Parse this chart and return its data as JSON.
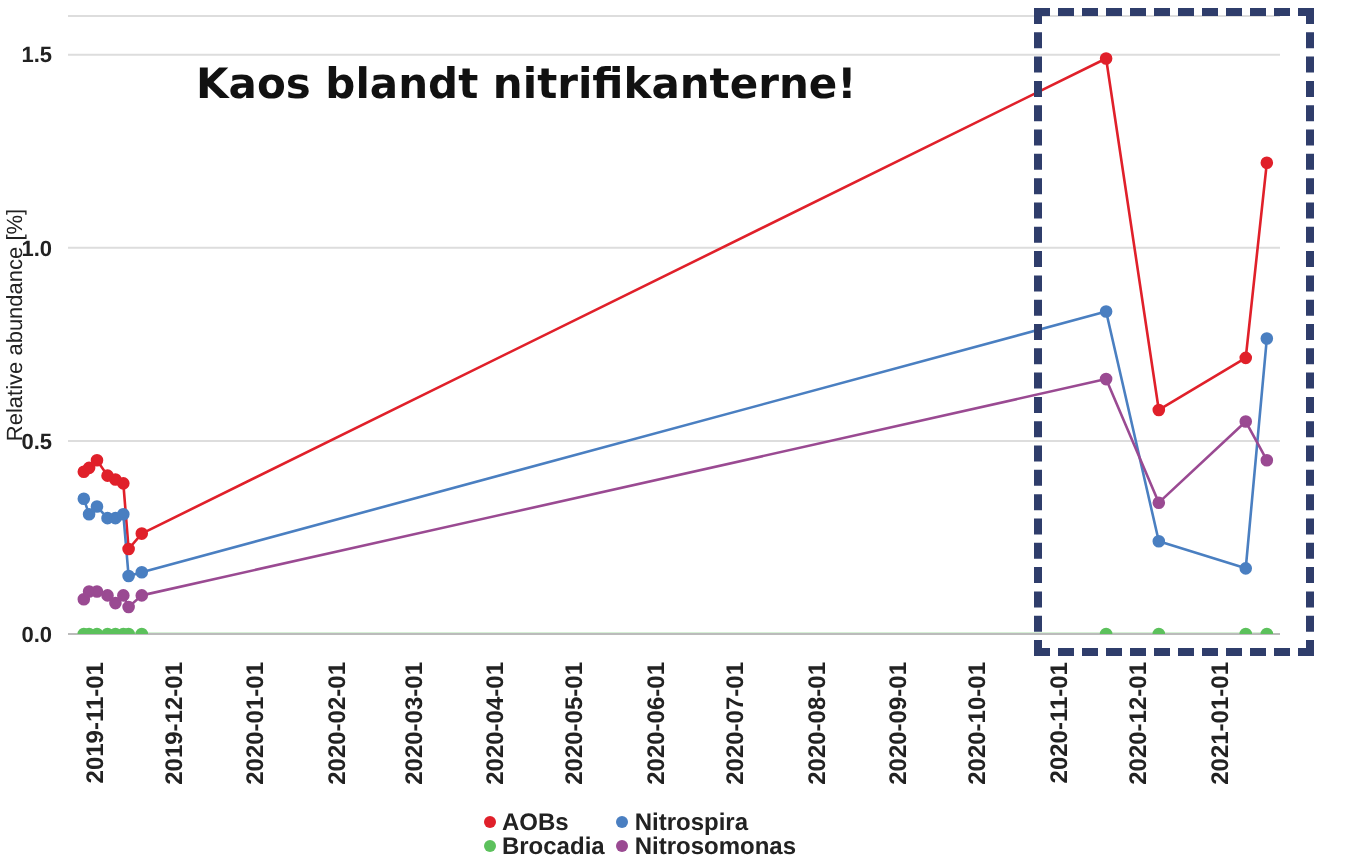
{
  "chart_data": {
    "type": "line",
    "title": "Kaos blandt nitrifikanterne!",
    "ylabel": "Relative abundance [%]",
    "x": [
      "2019-10-28",
      "2019-10-30",
      "2019-11-02",
      "2019-11-06",
      "2019-11-09",
      "2019-11-12",
      "2019-11-14",
      "2019-11-19",
      "2020-11-19",
      "2020-12-09",
      "2021-01-11",
      "2021-01-19"
    ],
    "series": [
      {
        "name": "AOBs",
        "color": "#e0202a",
        "values": [
          0.42,
          0.43,
          0.45,
          0.41,
          0.4,
          0.39,
          0.22,
          0.26,
          1.49,
          0.58,
          0.715,
          1.22
        ]
      },
      {
        "name": "Nitrospira",
        "color": "#4a7fc1",
        "values": [
          0.35,
          0.31,
          0.33,
          0.3,
          0.3,
          0.31,
          0.15,
          0.16,
          0.835,
          0.24,
          0.17,
          0.765
        ]
      },
      {
        "name": "Brocadia",
        "color": "#5cc15c",
        "values": [
          0,
          0,
          0,
          0,
          0,
          0,
          0,
          0,
          0,
          0,
          0,
          0
        ]
      },
      {
        "name": "Nitrosomonas",
        "color": "#9a4a92",
        "values": [
          0.09,
          0.11,
          0.11,
          0.1,
          0.08,
          0.1,
          0.07,
          0.1,
          0.66,
          0.34,
          0.55,
          0.45
        ]
      }
    ],
    "xlim": [
      "2019-10-22",
      "2021-01-24"
    ],
    "xticks": [
      "2019-11-01",
      "2019-12-01",
      "2020-01-01",
      "2020-02-01",
      "2020-03-01",
      "2020-04-01",
      "2020-05-01",
      "2020-06-01",
      "2020-07-01",
      "2020-08-01",
      "2020-09-01",
      "2020-10-01",
      "2020-11-01",
      "2020-12-01",
      "2021-01-01"
    ],
    "ylim": [
      0,
      1.6
    ],
    "yticks": [
      {
        "value": 0,
        "label": "0.0"
      },
      {
        "value": 0.5,
        "label": "0.5"
      },
      {
        "value": 1,
        "label": "1.0"
      },
      {
        "value": 1.5,
        "label": "1.5"
      }
    ],
    "grid": "y",
    "legend": "bottom",
    "marker": "circle",
    "line_style": "solid"
  }
}
